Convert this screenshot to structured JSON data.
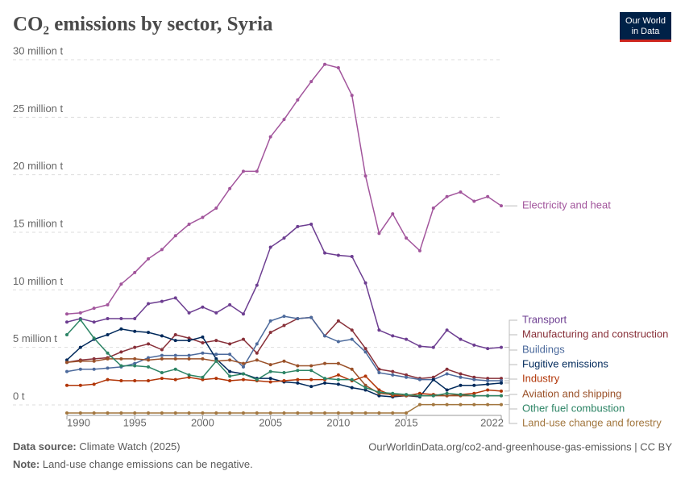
{
  "chart_data": {
    "type": "line",
    "title": "CO₂ emissions by sector, Syria",
    "logo": [
      "Our World",
      "in Data"
    ],
    "source_label": "Data source:",
    "source": "Climate Watch (2025)",
    "url": "OurWorldinData.org/co2-and-greenhouse-gas-emissions | CC BY",
    "note_label": "Note:",
    "note": "Land-use change emissions can be negative.",
    "x": [
      1990,
      1991,
      1992,
      1993,
      1994,
      1995,
      1996,
      1997,
      1998,
      1999,
      2000,
      2001,
      2002,
      2003,
      2004,
      2005,
      2006,
      2007,
      2008,
      2009,
      2010,
      2011,
      2012,
      2013,
      2014,
      2015,
      2016,
      2017,
      2018,
      2019,
      2020,
      2021,
      2022
    ],
    "xlim": [
      1990,
      2022
    ],
    "xticks": [
      1990,
      1995,
      2000,
      2005,
      2010,
      2015,
      2022
    ],
    "ylim": [
      -900000,
      30000000
    ],
    "yticks": [
      {
        "value": 0,
        "label": "0 t"
      },
      {
        "value": 5000000,
        "label": "5 million t"
      },
      {
        "value": 10000000,
        "label": "10 million t"
      },
      {
        "value": 15000000,
        "label": "15 million t"
      },
      {
        "value": 20000000,
        "label": "20 million t"
      },
      {
        "value": 25000000,
        "label": "25 million t"
      },
      {
        "value": 30000000,
        "label": "30 million t"
      }
    ],
    "grid": true,
    "series": [
      {
        "name": "Electricity and heat",
        "color": "#a2559c",
        "values": [
          7900000.0,
          8000000.0,
          8400000.0,
          8700000.0,
          10500000.0,
          11500000.0,
          12700000.0,
          13500000.0,
          14700000.0,
          15700000.0,
          16300000.0,
          17100000.0,
          18800000.0,
          20300000.0,
          20300000.0,
          23300000.0,
          24800000.0,
          26500000.0,
          28100000.0,
          29600000.0,
          29300000.0,
          26900000.0,
          19900000.0,
          14900000.0,
          16600000.0,
          14500000.0,
          13400000.0,
          17100000.0,
          18100000.0,
          18500000.0,
          17700000.0,
          18100000.0,
          17300000.0
        ]
      },
      {
        "name": "Transport",
        "color": "#6d3e91",
        "values": [
          7200000.0,
          7500000.0,
          7200000.0,
          7500000.0,
          7500000.0,
          7500000.0,
          8800000.0,
          9000000.0,
          9300000.0,
          8000000.0,
          8500000.0,
          8000000.0,
          8700000.0,
          7900000.0,
          10400000.0,
          13700000.0,
          14500000.0,
          15500000.0,
          15700000.0,
          13200000.0,
          13000000.0,
          12900000.0,
          10600000.0,
          6500000.0,
          6000000.0,
          5700000.0,
          5100000.0,
          5000000.0,
          6500000.0,
          5700000.0,
          5200000.0,
          4900000.0,
          5000000.0
        ]
      },
      {
        "name": "Manufacturing and construction",
        "color": "#883039",
        "values": [
          3700000.0,
          3900000.0,
          4000000.0,
          4100000.0,
          4600000.0,
          5000000.0,
          5300000.0,
          4800000.0,
          6100000.0,
          5800000.0,
          5400000.0,
          5600000.0,
          5300000.0,
          5700000.0,
          4500000.0,
          6300000.0,
          6900000.0,
          7500000.0,
          7600000.0,
          6000000.0,
          7300000.0,
          6500000.0,
          4900000.0,
          3100000.0,
          2900000.0,
          2600000.0,
          2300000.0,
          2400000.0,
          3100000.0,
          2700000.0,
          2400000.0,
          2300000.0,
          2300000.0
        ]
      },
      {
        "name": "Buildings",
        "color": "#4c6a9c",
        "values": [
          2900000.0,
          3100000.0,
          3100000.0,
          3200000.0,
          3300000.0,
          3600000.0,
          4100000.0,
          4300000.0,
          4300000.0,
          4300000.0,
          4500000.0,
          4400000.0,
          4400000.0,
          3300000.0,
          5300000.0,
          7300000.0,
          7700000.0,
          7500000.0,
          7600000.0,
          6000000.0,
          5500000.0,
          5700000.0,
          4600000.0,
          2800000.0,
          2600000.0,
          2400000.0,
          2200000.0,
          2200000.0,
          2700000.0,
          2400000.0,
          2200000.0,
          2100000.0,
          2100000.0
        ]
      },
      {
        "name": "Fugitive emissions",
        "color": "#00295b",
        "values": [
          3900000.0,
          5000000.0,
          5700000.0,
          6100000.0,
          6600000.0,
          6400000.0,
          6300000.0,
          6000000.0,
          5600000.0,
          5600000.0,
          5900000.0,
          4000000.0,
          2900000.0,
          2700000.0,
          2300000.0,
          2300000.0,
          2000000.0,
          1900000.0,
          1600000.0,
          1900000.0,
          1800000.0,
          1500000.0,
          1300000.0,
          800000.0,
          700000.0,
          800000.0,
          700000.0,
          2200000.0,
          1300000.0,
          1700000.0,
          1700000.0,
          1800000.0,
          1900000.0
        ]
      },
      {
        "name": "Industry",
        "color": "#b13507",
        "values": [
          1700000.0,
          1700000.0,
          1800000.0,
          2200000.0,
          2100000.0,
          2100000.0,
          2100000.0,
          2300000.0,
          2200000.0,
          2400000.0,
          2200000.0,
          2300000.0,
          2100000.0,
          2200000.0,
          2100000.0,
          2000000.0,
          2100000.0,
          2200000.0,
          2200000.0,
          2200000.0,
          2600000.0,
          2100000.0,
          2500000.0,
          1300000.0,
          800000.0,
          800000.0,
          1000000.0,
          900000.0,
          800000.0,
          900000.0,
          1000000.0,
          1300000.0,
          1200000.0
        ]
      },
      {
        "name": "Aviation and shipping",
        "color": "#9a5129",
        "values": [
          3700000.0,
          3800000.0,
          3800000.0,
          4000000.0,
          4000000.0,
          4000000.0,
          3900000.0,
          4000000.0,
          4000000.0,
          4000000.0,
          4000000.0,
          3800000.0,
          3900000.0,
          3600000.0,
          3900000.0,
          3500000.0,
          3800000.0,
          3400000.0,
          3400000.0,
          3600000.0,
          3600000.0,
          3100000.0,
          1700000.0,
          1000000.0,
          900000.0,
          800000.0,
          800000.0,
          800000.0,
          800000.0,
          800000.0,
          800000.0,
          800000.0,
          800000.0
        ]
      },
      {
        "name": "Other fuel combustion",
        "color": "#2c8465",
        "values": [
          6100000.0,
          7400000.0,
          5800000.0,
          4500000.0,
          3400000.0,
          3400000.0,
          3300000.0,
          2800000.0,
          3100000.0,
          2600000.0,
          2400000.0,
          3800000.0,
          2500000.0,
          2700000.0,
          2200000.0,
          2900000.0,
          2800000.0,
          3000000.0,
          3000000.0,
          2300000.0,
          2200000.0,
          2200000.0,
          1500000.0,
          1100000.0,
          1000000.0,
          900000.0,
          800000.0,
          800000.0,
          1000000.0,
          900000.0,
          800000.0,
          800000.0,
          800000.0
        ]
      },
      {
        "name": "Land-use change and forestry",
        "color": "#a2763e",
        "values": [
          -700000.0,
          -700000.0,
          -700000.0,
          -700000.0,
          -700000.0,
          -700000.0,
          -700000.0,
          -700000.0,
          -700000.0,
          -700000.0,
          -700000.0,
          -700000.0,
          -700000.0,
          -700000.0,
          -700000.0,
          -700000.0,
          -700000.0,
          -700000.0,
          -700000.0,
          -700000.0,
          -700000.0,
          -700000.0,
          -700000.0,
          -700000.0,
          -700000.0,
          -700000.0,
          30000.0,
          30000.0,
          30000.0,
          30000.0,
          30000.0,
          30000.0,
          30000.0
        ]
      }
    ]
  }
}
